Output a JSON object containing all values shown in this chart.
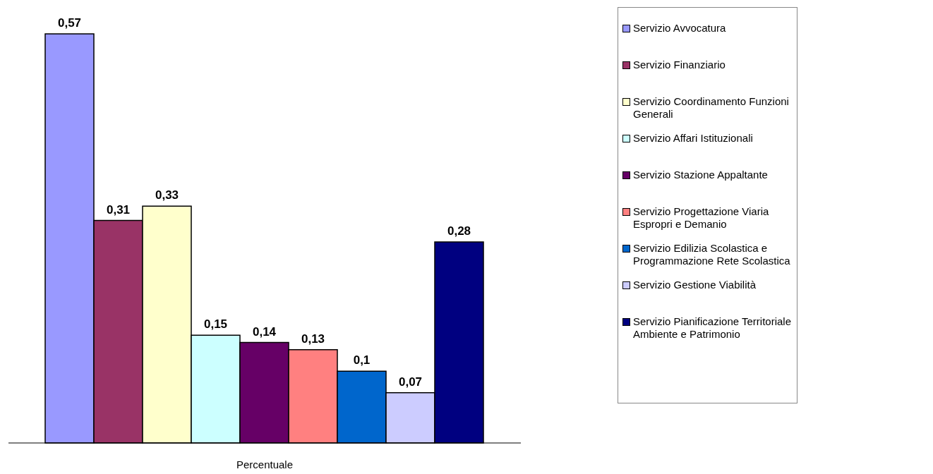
{
  "chart_data": {
    "type": "bar",
    "xlabel": "Percentuale",
    "legend": "right",
    "stacked": true,
    "categories": [
      null,
      null,
      null,
      null,
      null,
      null,
      null,
      null,
      null
    ],
    "series": [
      {
        "name": "Servizio Avvocatura",
        "color": "#9999ff",
        "values": [
          0.57,
          null,
          null,
          null,
          null,
          null,
          null,
          null,
          null
        ],
        "value_labels": [
          "0,57",
          null,
          null,
          null,
          null,
          null,
          null,
          null,
          null
        ]
      },
      {
        "name": "Servizio Finanziario",
        "color": "#993366",
        "values": [
          null,
          0.31,
          null,
          null,
          null,
          null,
          null,
          null,
          null
        ],
        "value_labels": [
          null,
          "0,31",
          null,
          null,
          null,
          null,
          null,
          null,
          null
        ]
      },
      {
        "name": "Servizio Coordinamento Funzioni Generali",
        "color": "#ffffcc",
        "values": [
          null,
          null,
          0.33,
          null,
          null,
          null,
          null,
          null,
          null
        ],
        "value_labels": [
          null,
          null,
          "0,33",
          null,
          null,
          null,
          null,
          null,
          null
        ]
      },
      {
        "name": "Servizio Affari Istituzionali",
        "color": "#ccffff",
        "values": [
          null,
          null,
          null,
          0.15,
          null,
          null,
          null,
          null,
          null
        ],
        "value_labels": [
          null,
          null,
          null,
          "0,15",
          null,
          null,
          null,
          null,
          null
        ]
      },
      {
        "name": "Servizio Stazione Appaltante",
        "color": "#660066",
        "values": [
          null,
          null,
          null,
          null,
          0.14,
          null,
          null,
          null,
          null
        ],
        "value_labels": [
          null,
          null,
          null,
          null,
          "0,14",
          null,
          null,
          null,
          null
        ]
      },
      {
        "name": "Servizio Progettazione Viaria Espropri e Demanio",
        "color": "#ff8080",
        "values": [
          null,
          null,
          null,
          null,
          null,
          0.13,
          null,
          null,
          null
        ],
        "value_labels": [
          null,
          null,
          null,
          null,
          null,
          "0,13",
          null,
          null,
          null
        ]
      },
      {
        "name": "Servizio Edilizia Scolastica e Programmazione Rete Scolastica",
        "color": "#0066cc",
        "values": [
          null,
          null,
          null,
          null,
          null,
          null,
          0.1,
          null,
          null
        ],
        "value_labels": [
          null,
          null,
          null,
          null,
          null,
          null,
          "0,1",
          null,
          null
        ]
      },
      {
        "name": "Servizio Gestione Viabilità",
        "color": "#ccccff",
        "values": [
          null,
          null,
          null,
          null,
          null,
          null,
          null,
          0.07,
          null
        ],
        "value_labels": [
          null,
          null,
          null,
          null,
          null,
          null,
          null,
          "0,07",
          null
        ]
      },
      {
        "name": "Servizio Pianificazione Territoriale Ambiente e Patrimonio",
        "color": "#000080",
        "values": [
          null,
          null,
          null,
          null,
          null,
          null,
          null,
          null,
          0.28
        ],
        "value_labels": [
          null,
          null,
          null,
          null,
          null,
          null,
          null,
          null,
          "0,28"
        ]
      }
    ]
  }
}
